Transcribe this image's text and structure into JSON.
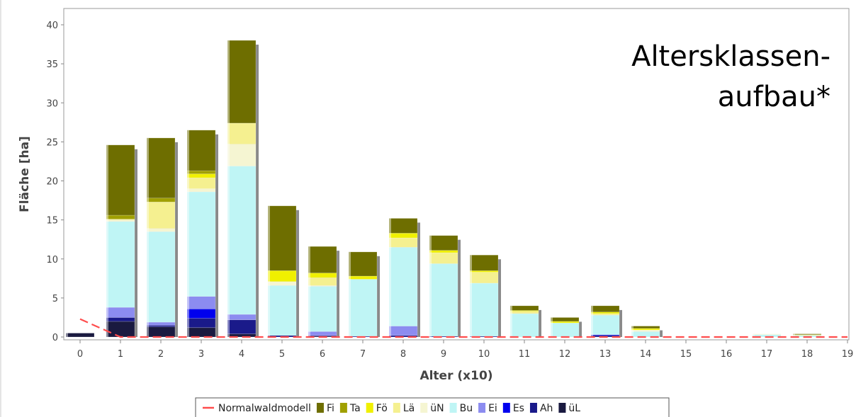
{
  "chart_data": {
    "type": "bar",
    "title_lines": [
      "Altersklassen-",
      "aufbau*"
    ],
    "xlabel": "Alter (x10)",
    "ylabel": "Fläche [ha]",
    "ylim": [
      0,
      41
    ],
    "yticks": [
      0,
      5,
      10,
      15,
      20,
      25,
      30,
      35,
      40
    ],
    "categories": [
      "0",
      "1",
      "2",
      "3",
      "4",
      "5",
      "6",
      "7",
      "8",
      "9",
      "10",
      "11",
      "12",
      "13",
      "14",
      "15",
      "16",
      "17",
      "18",
      "19"
    ],
    "stacked": true,
    "grid": false,
    "legend_position": "bottom",
    "series": [
      {
        "name": "üL",
        "color": "#1a1a40",
        "values": [
          0.5,
          2.0,
          1.3,
          1.2,
          0.4,
          0,
          0.1,
          0,
          0,
          0,
          0,
          0,
          0,
          0,
          0,
          0,
          0,
          0,
          0,
          0
        ]
      },
      {
        "name": "Ah",
        "color": "#1a1a8a",
        "values": [
          0,
          0.5,
          0.2,
          1.2,
          1.8,
          0.2,
          0.1,
          0.1,
          0.2,
          0.1,
          0.1,
          0,
          0,
          0.2,
          0,
          0,
          0,
          0,
          0,
          0
        ]
      },
      {
        "name": "Es",
        "color": "#0000ee",
        "values": [
          0,
          0,
          0,
          1.2,
          0,
          0,
          0,
          0,
          0,
          0,
          0,
          0,
          0,
          0.1,
          0,
          0,
          0,
          0,
          0,
          0
        ]
      },
      {
        "name": "Ei",
        "color": "#8c8cf0",
        "values": [
          0,
          1.3,
          0.4,
          1.6,
          0.7,
          0,
          0.5,
          0,
          1.2,
          0,
          0,
          0,
          0,
          0,
          0,
          0,
          0,
          0,
          0,
          0
        ]
      },
      {
        "name": "Bu",
        "color": "#bff5f5",
        "values": [
          0,
          11.0,
          11.6,
          13.4,
          19.0,
          6.4,
          5.8,
          7.3,
          10.1,
          9.3,
          6.8,
          3.0,
          1.8,
          2.5,
          0.7,
          0,
          0,
          0.3,
          0.2,
          0
        ]
      },
      {
        "name": "üN",
        "color": "#f5f5d2",
        "values": [
          0,
          0.2,
          0.4,
          0.4,
          2.8,
          0.5,
          0.1,
          0,
          0,
          0,
          0,
          0,
          0,
          0,
          0.2,
          0,
          0,
          0.1,
          0,
          0
        ]
      },
      {
        "name": "Lä",
        "color": "#f5f090",
        "values": [
          0,
          0.1,
          3.4,
          1.4,
          2.7,
          0,
          1.0,
          0,
          1.2,
          1.4,
          1.4,
          0.3,
          0,
          0.2,
          0,
          0,
          0,
          0,
          0.1,
          0
        ]
      },
      {
        "name": "Fö",
        "color": "#f0f000",
        "values": [
          0,
          0,
          0,
          0.5,
          0,
          1.4,
          0.6,
          0.4,
          0.6,
          0.3,
          0.2,
          0.1,
          0.2,
          0.2,
          0.2,
          0,
          0,
          0,
          0,
          0
        ]
      },
      {
        "name": "Ta",
        "color": "#a0a000",
        "values": [
          0,
          0.5,
          0.5,
          0.4,
          0,
          0,
          0,
          0,
          0,
          0,
          0,
          0,
          0,
          0,
          0,
          0,
          0,
          0,
          0,
          0
        ]
      },
      {
        "name": "Fi",
        "color": "#6e6e00",
        "values": [
          0,
          9.0,
          7.7,
          5.2,
          10.6,
          8.3,
          3.4,
          3.1,
          1.9,
          1.9,
          2.0,
          0.6,
          0.5,
          0.8,
          0.3,
          0,
          0,
          0,
          0.1,
          0
        ]
      }
    ],
    "line_series": {
      "name": "Normalwaldmodell",
      "color": "#ff4d4d",
      "dash": true,
      "values": [
        2.3,
        0,
        0,
        0,
        0,
        0,
        0,
        0,
        0,
        0,
        0,
        0,
        0,
        0,
        0,
        0,
        0,
        0,
        0,
        0
      ]
    },
    "legend_order": [
      "Normalwaldmodell",
      "Fi",
      "Ta",
      "Fö",
      "Lä",
      "üN",
      "Bu",
      "Ei",
      "Es",
      "Ah",
      "üL"
    ]
  }
}
